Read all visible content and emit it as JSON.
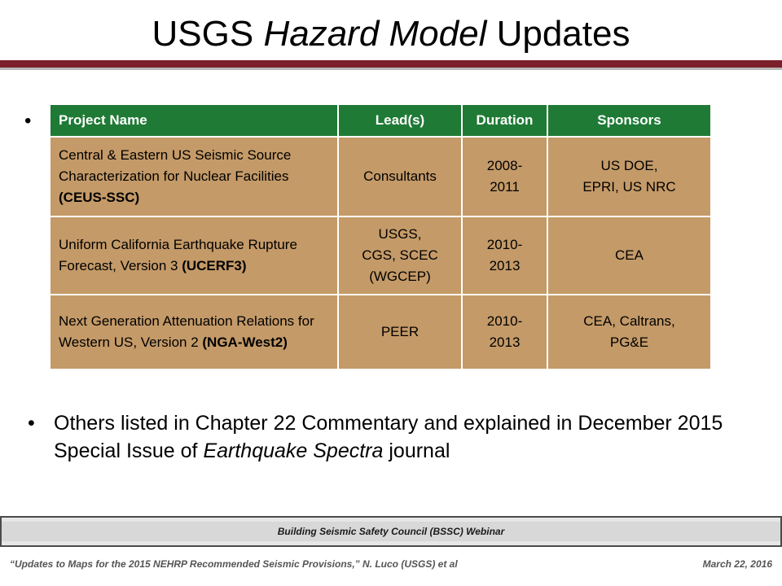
{
  "title": {
    "prefix": "USGS ",
    "italic": "Hazard Model",
    "suffix": " Updates"
  },
  "colors": {
    "accent_maroon": "#7a1f2b",
    "table_header_green": "#1f7a35",
    "table_cell_tan": "#c49a68"
  },
  "bullet_symbol": "•",
  "table": {
    "headers": [
      "Project Name",
      "Lead(s)",
      "Duration",
      "Sponsors"
    ],
    "rows": [
      {
        "name": "Central & Eastern US Seismic Source Characterization for Nuclear Facilities ",
        "abbr": "(CEUS-SSC)",
        "leads": "Consultants",
        "duration": "2008-\n2011",
        "sponsors": "US DOE,\nEPRI, US NRC"
      },
      {
        "name": "Uniform California Earthquake Rupture Forecast, Version 3 ",
        "abbr": "(UCERF3)",
        "leads": "USGS,\nCGS, SCEC\n(WGCEP)",
        "duration": "2010-\n2013",
        "sponsors": "CEA"
      },
      {
        "name": "Next Generation Attenuation Relations for Western US, Version 2 ",
        "abbr": "(NGA-West2)",
        "leads": "PEER",
        "duration": "2010-\n2013",
        "sponsors": "CEA, Caltrans,\nPG&E"
      }
    ]
  },
  "others": {
    "part1": "Others listed in Chapter 22 Commentary and explained in December 2015 Special Issue of ",
    "italic": "Earthquake Spectra",
    "part2": " journal"
  },
  "footer": {
    "banner": "Building Seismic Safety Council (BSSC) Webinar",
    "left": "“Updates to Maps for the 2015 NEHRP Recommended Seismic Provisions,” N. Luco (USGS) et al",
    "right": "March 22, 2016"
  }
}
